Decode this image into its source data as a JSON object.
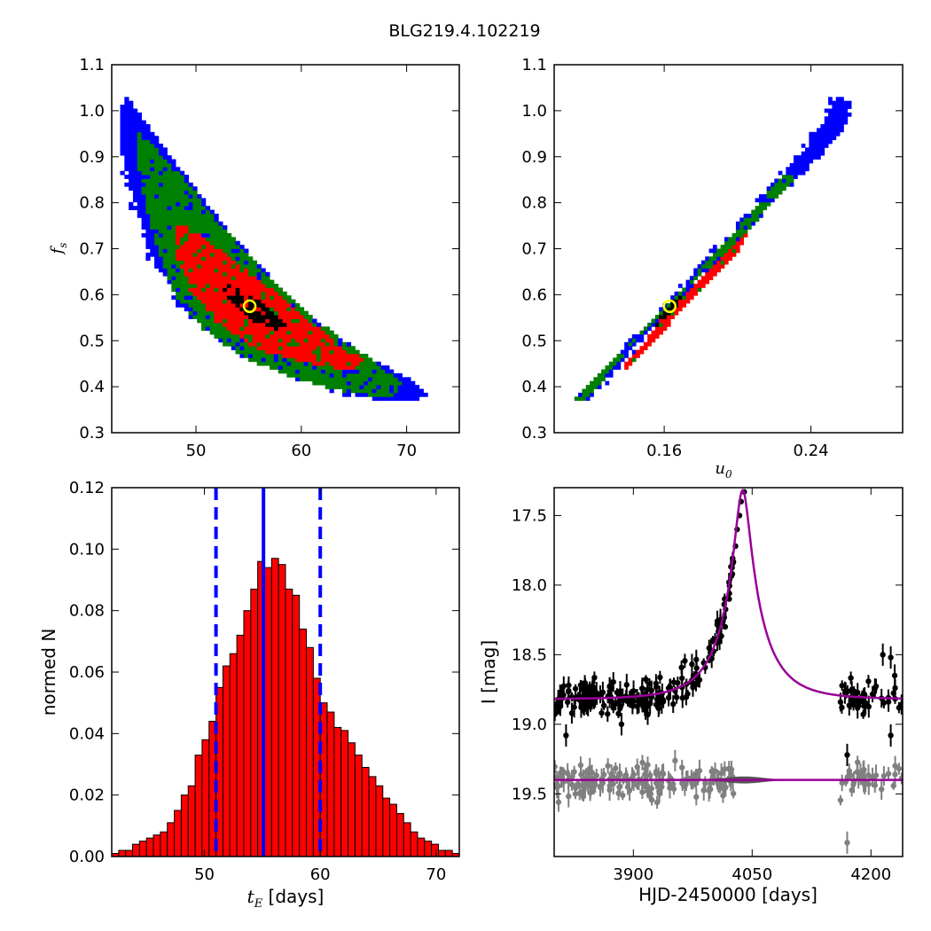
{
  "title": "BLG219.4.102219",
  "chart_data": [
    {
      "id": "te-fs",
      "type": "heatmap",
      "title": "",
      "xlabel": "",
      "ylabel": "f_s",
      "ylabel_main": "f",
      "ylabel_sub": "s",
      "xlim": [
        42,
        75
      ],
      "ylim": [
        0.3,
        1.1
      ],
      "xticks": [
        50,
        60,
        70
      ],
      "yticks": [
        0.3,
        0.4,
        0.5,
        0.6,
        0.7,
        0.8,
        0.9,
        1.0,
        1.1
      ],
      "yticklabels": [
        "0.3",
        "0.4",
        "0.5",
        "0.6",
        "0.7",
        "0.8",
        "0.9",
        "1.0",
        "1.1"
      ],
      "grid": false,
      "legend": "none",
      "region_colors": {
        "outer": "#0000ff",
        "middle": "#008000",
        "inner": "#ff0000",
        "core": "#000000"
      },
      "regions": {
        "outer": [
          [
            43.5,
            1.03
          ],
          [
            44.8,
            0.99
          ],
          [
            47,
            0.92
          ],
          [
            50,
            0.83
          ],
          [
            53,
            0.74
          ],
          [
            57,
            0.64
          ],
          [
            61,
            0.55
          ],
          [
            66,
            0.47
          ],
          [
            70,
            0.42
          ],
          [
            72,
            0.385
          ],
          [
            71,
            0.37
          ],
          [
            66,
            0.375
          ],
          [
            61,
            0.42
          ],
          [
            56,
            0.46
          ],
          [
            52,
            0.51
          ],
          [
            48.5,
            0.58
          ],
          [
            46,
            0.68
          ],
          [
            44.5,
            0.78
          ],
          [
            43,
            0.9
          ],
          [
            42.8,
            1.0
          ]
        ],
        "middle": [
          [
            44.5,
            0.96
          ],
          [
            46.5,
            0.91
          ],
          [
            49,
            0.85
          ],
          [
            52,
            0.76
          ],
          [
            56,
            0.66
          ],
          [
            60,
            0.57
          ],
          [
            64,
            0.5
          ],
          [
            68,
            0.44
          ],
          [
            69.5,
            0.405
          ],
          [
            68.5,
            0.375
          ],
          [
            64,
            0.39
          ],
          [
            59,
            0.42
          ],
          [
            54,
            0.47
          ],
          [
            50.5,
            0.53
          ],
          [
            48,
            0.6
          ],
          [
            46.3,
            0.7
          ],
          [
            45.2,
            0.8
          ],
          [
            44.4,
            0.9
          ]
        ],
        "inner": [
          [
            48.2,
            0.76
          ],
          [
            51,
            0.72
          ],
          [
            55,
            0.65
          ],
          [
            59,
            0.58
          ],
          [
            63,
            0.5
          ],
          [
            66,
            0.46
          ],
          [
            65,
            0.435
          ],
          [
            61,
            0.45
          ],
          [
            56,
            0.48
          ],
          [
            52,
            0.54
          ],
          [
            49.5,
            0.61
          ],
          [
            48,
            0.69
          ]
        ],
        "core": [
          [
            53,
            0.625
          ],
          [
            55.2,
            0.6
          ],
          [
            57.5,
            0.56
          ],
          [
            58.5,
            0.535
          ],
          [
            57.5,
            0.525
          ],
          [
            55.2,
            0.545
          ],
          [
            53.3,
            0.585
          ],
          [
            52.6,
            0.61
          ]
        ]
      },
      "best_fit": {
        "x": 55.1,
        "y": 0.575,
        "color": "#ffff00"
      }
    },
    {
      "id": "u0-fs",
      "type": "heatmap",
      "title": "",
      "xlabel": "u_0",
      "xlabel_main": "u",
      "xlabel_sub": "0",
      "ylabel": "",
      "xlim": [
        0.1,
        0.29
      ],
      "ylim": [
        0.3,
        1.1
      ],
      "xticks": [
        0.16,
        0.24
      ],
      "xticklabels": [
        "0.16",
        "0.24"
      ],
      "yticks": [
        0.3,
        0.4,
        0.5,
        0.6,
        0.7,
        0.8,
        0.9,
        1.0,
        1.1
      ],
      "yticklabels": [
        "0.3",
        "0.4",
        "0.5",
        "0.6",
        "0.7",
        "0.8",
        "0.9",
        "1.0",
        "1.1"
      ],
      "grid": false,
      "legend": "none",
      "region_colors": {
        "outer": "#0000ff",
        "middle": "#008000",
        "inner": "#ff0000",
        "core": "#000000"
      },
      "regions": {
        "outer": [
          [
            0.115,
            0.375
          ],
          [
            0.16,
            0.57
          ],
          [
            0.21,
            0.79
          ],
          [
            0.24,
            0.93
          ],
          [
            0.254,
            1.03
          ],
          [
            0.262,
            1.02
          ],
          [
            0.258,
            0.96
          ],
          [
            0.23,
            0.85
          ],
          [
            0.2,
            0.73
          ],
          [
            0.17,
            0.6
          ],
          [
            0.14,
            0.47
          ],
          [
            0.12,
            0.38
          ]
        ],
        "middle": [
          [
            0.111,
            0.375
          ],
          [
            0.15,
            0.53
          ],
          [
            0.19,
            0.7
          ],
          [
            0.225,
            0.86
          ],
          [
            0.232,
            0.855
          ],
          [
            0.21,
            0.76
          ],
          [
            0.175,
            0.62
          ],
          [
            0.14,
            0.48
          ],
          [
            0.117,
            0.37
          ]
        ],
        "inner": [
          [
            0.135,
            0.43
          ],
          [
            0.16,
            0.55
          ],
          [
            0.19,
            0.68
          ],
          [
            0.205,
            0.735
          ],
          [
            0.2,
            0.69
          ],
          [
            0.173,
            0.58
          ],
          [
            0.145,
            0.46
          ],
          [
            0.13,
            0.41
          ]
        ],
        "core": [
          [
            0.155,
            0.535
          ],
          [
            0.165,
            0.59
          ],
          [
            0.17,
            0.6
          ],
          [
            0.168,
            0.58
          ],
          [
            0.16,
            0.545
          ],
          [
            0.153,
            0.525
          ]
        ]
      },
      "best_fit": {
        "x": 0.163,
        "y": 0.575,
        "color": "#ffff00"
      }
    },
    {
      "id": "te-hist",
      "type": "bar",
      "title": "",
      "xlabel": "t_E [days]",
      "xlabel_main": "t",
      "xlabel_sub": "E",
      "xlabel_unit": " [days]",
      "ylabel": "normed N",
      "xlim": [
        42,
        72
      ],
      "ylim": [
        0,
        0.12
      ],
      "xticks": [
        50,
        60,
        70
      ],
      "yticks": [
        0,
        0.02,
        0.04,
        0.06,
        0.08,
        0.1,
        0.12
      ],
      "yticklabels": [
        "0.00",
        "0.02",
        "0.04",
        "0.06",
        "0.08",
        "0.10",
        "0.12"
      ],
      "bar_color": "#ff0000",
      "bar_width": 0.6,
      "x": [
        42.3,
        42.9,
        43.5,
        44.1,
        44.7,
        45.3,
        45.9,
        46.5,
        47.1,
        47.7,
        48.3,
        48.9,
        49.5,
        50.1,
        50.7,
        51.3,
        51.9,
        52.5,
        53.1,
        53.7,
        54.3,
        54.9,
        55.5,
        56.1,
        56.7,
        57.3,
        57.9,
        58.5,
        59.1,
        59.7,
        60.3,
        60.9,
        61.5,
        62.1,
        62.7,
        63.3,
        63.9,
        64.5,
        65.1,
        65.7,
        66.3,
        66.9,
        67.5,
        68.1,
        68.7,
        69.3,
        69.9,
        70.5,
        71.1,
        71.7
      ],
      "values": [
        0.001,
        0.002,
        0.002,
        0.004,
        0.005,
        0.006,
        0.007,
        0.008,
        0.011,
        0.015,
        0.02,
        0.023,
        0.033,
        0.038,
        0.044,
        0.055,
        0.062,
        0.066,
        0.072,
        0.08,
        0.087,
        0.096,
        0.094,
        0.097,
        0.095,
        0.087,
        0.085,
        0.074,
        0.068,
        0.058,
        0.05,
        0.047,
        0.042,
        0.041,
        0.037,
        0.033,
        0.029,
        0.026,
        0.023,
        0.019,
        0.017,
        0.014,
        0.011,
        0.008,
        0.006,
        0.005,
        0.004,
        0.002,
        0.002,
        0.001
      ],
      "vlines": [
        {
          "x": 55.1,
          "style": "solid",
          "color": "#0000ff"
        },
        {
          "x": 51.0,
          "style": "dashed",
          "color": "#0000ff"
        },
        {
          "x": 60.0,
          "style": "dashed",
          "color": "#0000ff"
        }
      ]
    },
    {
      "id": "lightcurve",
      "type": "scatter",
      "title": "",
      "xlabel": "HJD-2450000 [days]",
      "ylabel": "I [mag]",
      "xlim": [
        3800,
        4240
      ],
      "ylim": [
        19.95,
        17.3
      ],
      "y_inverted": true,
      "xticks": [
        3900,
        4050,
        4200
      ],
      "xticklabels": [
        "3900",
        "4050",
        "4200"
      ],
      "yticks": [
        17.5,
        18.0,
        18.5,
        19.0,
        19.5
      ],
      "yticklabels": [
        "17.5",
        "18.0",
        "18.5",
        "19.0",
        "19.5"
      ],
      "model": {
        "t0": 4038,
        "tE": 55.1,
        "u0": 0.163,
        "fs": 0.575,
        "base_mag": 18.82,
        "color": "#990099"
      },
      "residual_model": {
        "level": 19.4,
        "color": "#990099"
      },
      "data_series": {
        "color": "#000000",
        "season_breaks": [
          [
            4010,
            4160
          ]
        ],
        "scatter_mag": 0.06,
        "points": 230
      },
      "residual_series": {
        "color": "#808080",
        "offset_to": 19.4,
        "scatter_mag": 0.06,
        "points": 200
      },
      "peak_points": [
        [
          4016,
          18.3
        ],
        [
          4021,
          18.1
        ],
        [
          4025,
          17.92
        ],
        [
          4029,
          17.72
        ],
        [
          4031,
          17.6
        ],
        [
          4034,
          17.5
        ],
        [
          4036,
          17.4
        ],
        [
          4040,
          17.33
        ]
      ],
      "outliers": [
        [
          3885,
          19.0
        ],
        [
          3815,
          19.08
        ],
        [
          4170,
          19.22
        ],
        [
          4170,
          19.85
        ],
        [
          4215,
          18.5
        ],
        [
          4225,
          18.52
        ],
        [
          4230,
          18.65
        ],
        [
          4225,
          19.08
        ]
      ]
    }
  ]
}
